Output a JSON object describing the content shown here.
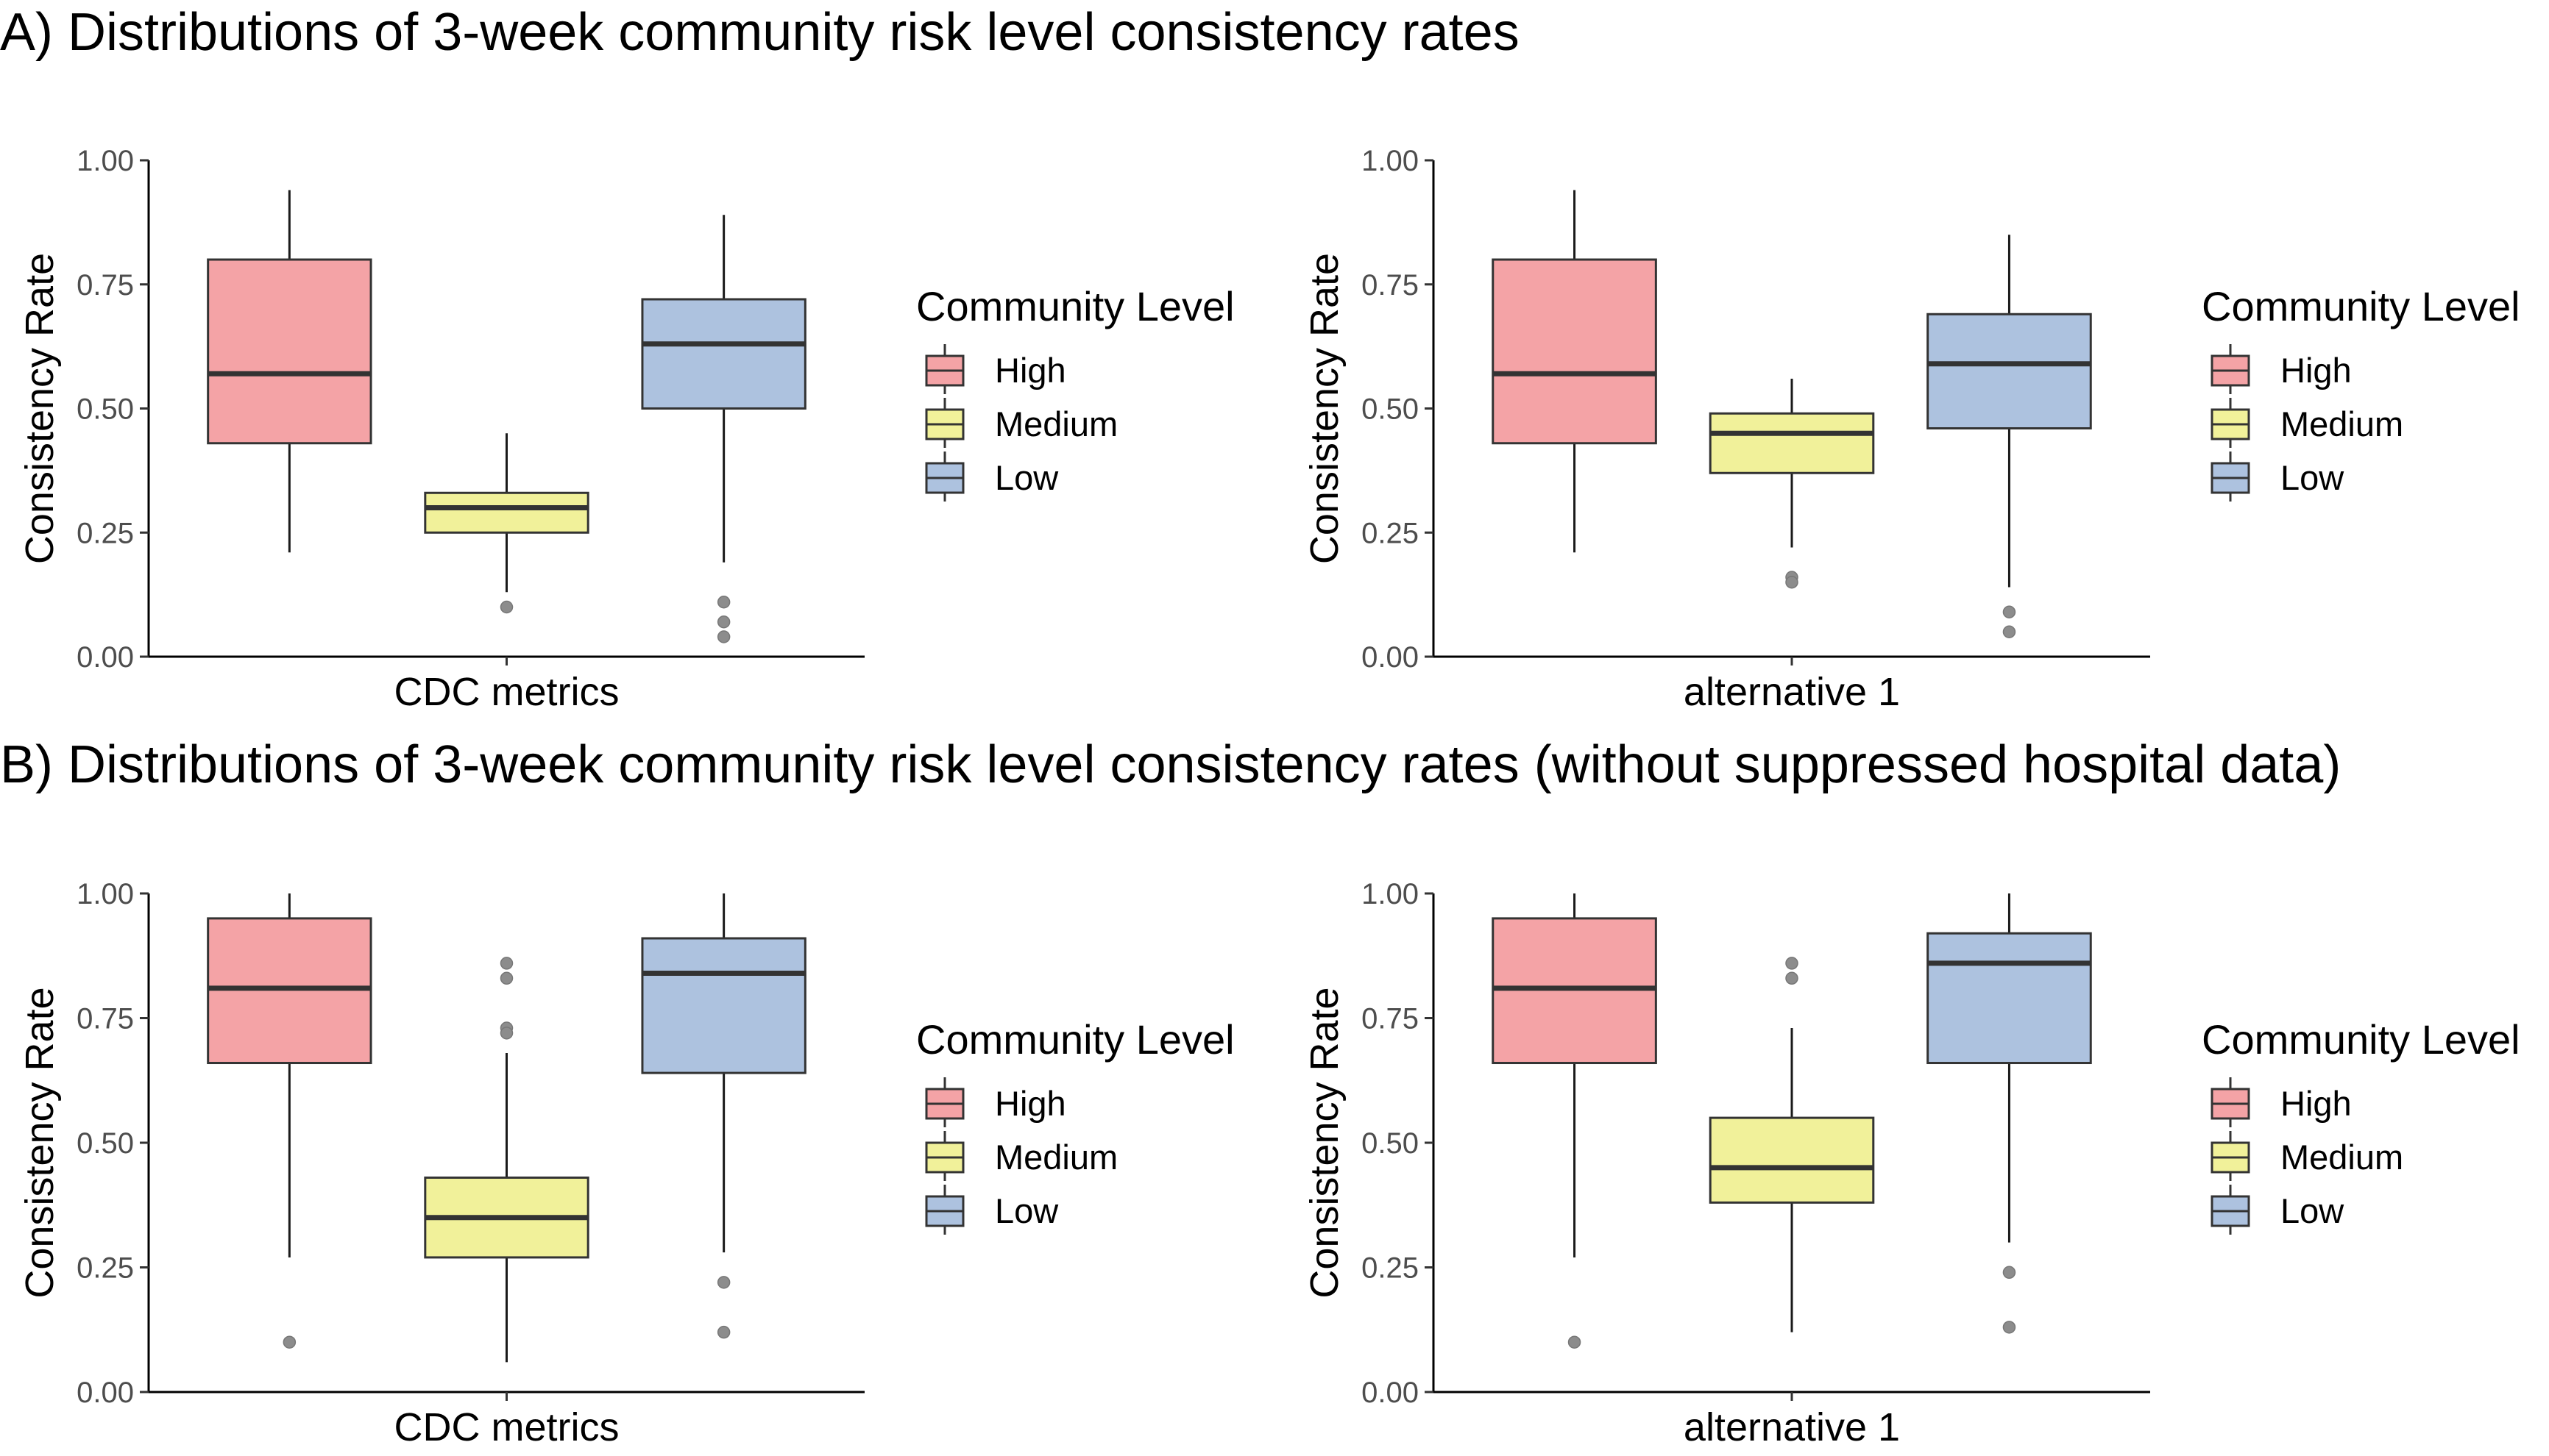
{
  "section_a": {
    "title": "A) Distributions of 3-week community risk level consistency rates"
  },
  "section_b": {
    "title": "B) Distributions of 3-week community risk level consistency rates (without suppressed hospital data)"
  },
  "colors": {
    "High": "#f4a3a6",
    "Medium": "#f1f19a",
    "Low": "#adc2df",
    "outlier": "#8c8c8c",
    "median": "#333333"
  },
  "chart_data": [
    {
      "type": "box",
      "section": "A",
      "category": "CDC metrics",
      "ylabel": "Consistency Rate",
      "ylim": [
        0,
        1
      ],
      "yticks": [
        "0.00",
        "0.25",
        "0.50",
        "0.75",
        "1.00"
      ],
      "legend": {
        "title": "Community Level",
        "entries": [
          "High",
          "Medium",
          "Low"
        ],
        "position": "right"
      },
      "series": [
        {
          "name": "High",
          "min": 0.21,
          "q1": 0.43,
          "median": 0.57,
          "q3": 0.8,
          "max": 0.94,
          "outliers": []
        },
        {
          "name": "Medium",
          "min": 0.13,
          "q1": 0.25,
          "median": 0.3,
          "q3": 0.33,
          "max": 0.45,
          "outliers": [
            0.1
          ]
        },
        {
          "name": "Low",
          "min": 0.19,
          "q1": 0.5,
          "median": 0.63,
          "q3": 0.72,
          "max": 0.89,
          "outliers": [
            0.11,
            0.07,
            0.04
          ]
        }
      ]
    },
    {
      "type": "box",
      "section": "A",
      "category": "alternative 1",
      "ylabel": "Consistency Rate",
      "ylim": [
        0,
        1
      ],
      "yticks": [
        "0.00",
        "0.25",
        "0.50",
        "0.75",
        "1.00"
      ],
      "legend": {
        "title": "Community Level",
        "entries": [
          "High",
          "Medium",
          "Low"
        ],
        "position": "right"
      },
      "series": [
        {
          "name": "High",
          "min": 0.21,
          "q1": 0.43,
          "median": 0.57,
          "q3": 0.8,
          "max": 0.94,
          "outliers": []
        },
        {
          "name": "Medium",
          "min": 0.22,
          "q1": 0.37,
          "median": 0.45,
          "q3": 0.49,
          "max": 0.56,
          "outliers": [
            0.16,
            0.15
          ]
        },
        {
          "name": "Low",
          "min": 0.14,
          "q1": 0.46,
          "median": 0.59,
          "q3": 0.69,
          "max": 0.85,
          "outliers": [
            0.09,
            0.05
          ]
        }
      ]
    },
    {
      "type": "box",
      "section": "B",
      "category": "CDC metrics",
      "ylabel": "Consistency Rate",
      "ylim": [
        0,
        1
      ],
      "yticks": [
        "0.00",
        "0.25",
        "0.50",
        "0.75",
        "1.00"
      ],
      "legend": {
        "title": "Community Level",
        "entries": [
          "High",
          "Medium",
          "Low"
        ],
        "position": "right"
      },
      "series": [
        {
          "name": "High",
          "min": 0.27,
          "q1": 0.66,
          "median": 0.81,
          "q3": 0.95,
          "max": 1.0,
          "outliers": [
            0.1
          ]
        },
        {
          "name": "Medium",
          "min": 0.06,
          "q1": 0.27,
          "median": 0.35,
          "q3": 0.43,
          "max": 0.68,
          "outliers": [
            0.86,
            0.83,
            0.73,
            0.72
          ]
        },
        {
          "name": "Low",
          "min": 0.28,
          "q1": 0.64,
          "median": 0.84,
          "q3": 0.91,
          "max": 1.0,
          "outliers": [
            0.22,
            0.12
          ]
        }
      ]
    },
    {
      "type": "box",
      "section": "B",
      "category": "alternative 1",
      "ylabel": "Consistency Rate",
      "ylim": [
        0,
        1
      ],
      "yticks": [
        "0.00",
        "0.25",
        "0.50",
        "0.75",
        "1.00"
      ],
      "legend": {
        "title": "Community Level",
        "entries": [
          "High",
          "Medium",
          "Low"
        ],
        "position": "right"
      },
      "series": [
        {
          "name": "High",
          "min": 0.27,
          "q1": 0.66,
          "median": 0.81,
          "q3": 0.95,
          "max": 1.0,
          "outliers": [
            0.1
          ]
        },
        {
          "name": "Medium",
          "min": 0.12,
          "q1": 0.38,
          "median": 0.45,
          "q3": 0.55,
          "max": 0.73,
          "outliers": [
            0.86,
            0.83
          ]
        },
        {
          "name": "Low",
          "min": 0.3,
          "q1": 0.66,
          "median": 0.86,
          "q3": 0.92,
          "max": 1.0,
          "outliers": [
            0.24,
            0.13
          ]
        }
      ]
    }
  ]
}
